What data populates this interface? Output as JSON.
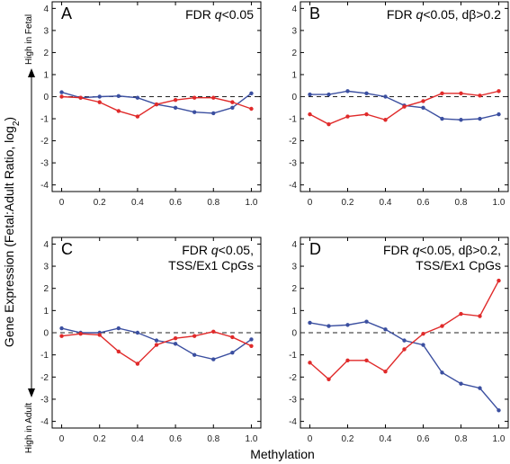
{
  "figure": {
    "xlabel": "Methylation",
    "ylabel": "Gene Expression (Fetal:Adult Ratio, log",
    "ylabel_sub": "2",
    "ylabel_close": ")",
    "high_fetal": "High in Fetal",
    "high_adult": "High in Adult"
  },
  "colors": {
    "blue": "#3b4fa0",
    "red": "#e02a2a",
    "zero_line": "#222222"
  },
  "chart_data": [
    {
      "type": "line",
      "letter": "A",
      "title_lines": [
        {
          "pre": "FDR ",
          "q": "q",
          "post": "<0.05"
        }
      ],
      "x": [
        0,
        0.1,
        0.2,
        0.3,
        0.4,
        0.5,
        0.6,
        0.7,
        0.8,
        0.9,
        1.0
      ],
      "xticks": [
        "0",
        "0.2",
        "0.4",
        "0.6",
        "0.8",
        "1.0"
      ],
      "xlim": [
        -0.05,
        1.05
      ],
      "ylim": [
        -4.3,
        4.3
      ],
      "yticks": [
        "-4",
        "-3",
        "-2",
        "-1",
        "0",
        "1",
        "2",
        "3",
        "4"
      ],
      "series": [
        {
          "color": "blue",
          "values": [
            0.2,
            -0.05,
            0.0,
            0.03,
            -0.05,
            -0.35,
            -0.5,
            -0.7,
            -0.75,
            -0.5,
            0.15
          ]
        },
        {
          "color": "red",
          "values": [
            0.0,
            -0.05,
            -0.25,
            -0.65,
            -0.9,
            -0.35,
            -0.15,
            -0.05,
            -0.05,
            -0.25,
            -0.55
          ]
        }
      ]
    },
    {
      "type": "line",
      "letter": "B",
      "title_lines": [
        {
          "pre": "FDR ",
          "q": "q",
          "post": "<0.05, dβ>0.2"
        }
      ],
      "x": [
        0,
        0.1,
        0.2,
        0.3,
        0.4,
        0.5,
        0.6,
        0.7,
        0.8,
        0.9,
        1.0
      ],
      "xticks": [
        "0",
        "0.2",
        "0.4",
        "0.6",
        "0.8",
        "1.0"
      ],
      "xlim": [
        -0.05,
        1.05
      ],
      "ylim": [
        -4.3,
        4.3
      ],
      "yticks": [
        "-4",
        "-3",
        "-2",
        "-1",
        "0",
        "1",
        "2",
        "3",
        "4"
      ],
      "series": [
        {
          "color": "blue",
          "values": [
            0.1,
            0.1,
            0.25,
            0.15,
            0.0,
            -0.4,
            -0.5,
            -1.0,
            -1.05,
            -1.0,
            -0.8
          ]
        },
        {
          "color": "red",
          "values": [
            -0.8,
            -1.25,
            -0.9,
            -0.8,
            -1.05,
            -0.45,
            -0.2,
            0.15,
            0.15,
            0.05,
            0.25
          ]
        }
      ]
    },
    {
      "type": "line",
      "letter": "C",
      "title_lines": [
        {
          "pre": "FDR ",
          "q": "q",
          "post": "<0.05,"
        },
        {
          "pre": "TSS/Ex1 CpGs",
          "q": "",
          "post": ""
        }
      ],
      "x": [
        0,
        0.1,
        0.2,
        0.3,
        0.4,
        0.5,
        0.6,
        0.7,
        0.8,
        0.9,
        1.0
      ],
      "xticks": [
        "0",
        "0.2",
        "0.4",
        "0.6",
        "0.8",
        "1.0"
      ],
      "xlim": [
        -0.05,
        1.05
      ],
      "ylim": [
        -4.3,
        4.3
      ],
      "yticks": [
        "-4",
        "-3",
        "-2",
        "-1",
        "0",
        "1",
        "2",
        "3",
        "4"
      ],
      "series": [
        {
          "color": "blue",
          "values": [
            0.2,
            0.0,
            0.0,
            0.2,
            0.0,
            -0.35,
            -0.5,
            -1.0,
            -1.2,
            -0.9,
            -0.3
          ]
        },
        {
          "color": "red",
          "values": [
            -0.15,
            -0.05,
            -0.1,
            -0.85,
            -1.4,
            -0.55,
            -0.25,
            -0.15,
            0.05,
            -0.2,
            -0.6
          ]
        }
      ]
    },
    {
      "type": "line",
      "letter": "D",
      "title_lines": [
        {
          "pre": "FDR ",
          "q": "q",
          "post": "<0.05, dβ>0.2,"
        },
        {
          "pre": "TSS/Ex1 CpGs",
          "q": "",
          "post": ""
        }
      ],
      "x": [
        0,
        0.1,
        0.2,
        0.3,
        0.4,
        0.5,
        0.6,
        0.7,
        0.8,
        0.9,
        1.0
      ],
      "xticks": [
        "0",
        "0.2",
        "0.4",
        "0.6",
        "0.8",
        "1.0"
      ],
      "xlim": [
        -0.05,
        1.05
      ],
      "ylim": [
        -4.3,
        4.3
      ],
      "yticks": [
        "-4",
        "-3",
        "-2",
        "-1",
        "0",
        "1",
        "2",
        "3",
        "4"
      ],
      "series": [
        {
          "color": "blue",
          "values": [
            0.45,
            0.3,
            0.35,
            0.5,
            0.15,
            -0.35,
            -0.55,
            -1.8,
            -2.3,
            -2.5,
            -3.5
          ]
        },
        {
          "color": "red",
          "values": [
            -1.35,
            -2.1,
            -1.25,
            -1.25,
            -1.75,
            -0.75,
            -0.05,
            0.3,
            0.85,
            0.75,
            2.35
          ]
        }
      ]
    }
  ]
}
